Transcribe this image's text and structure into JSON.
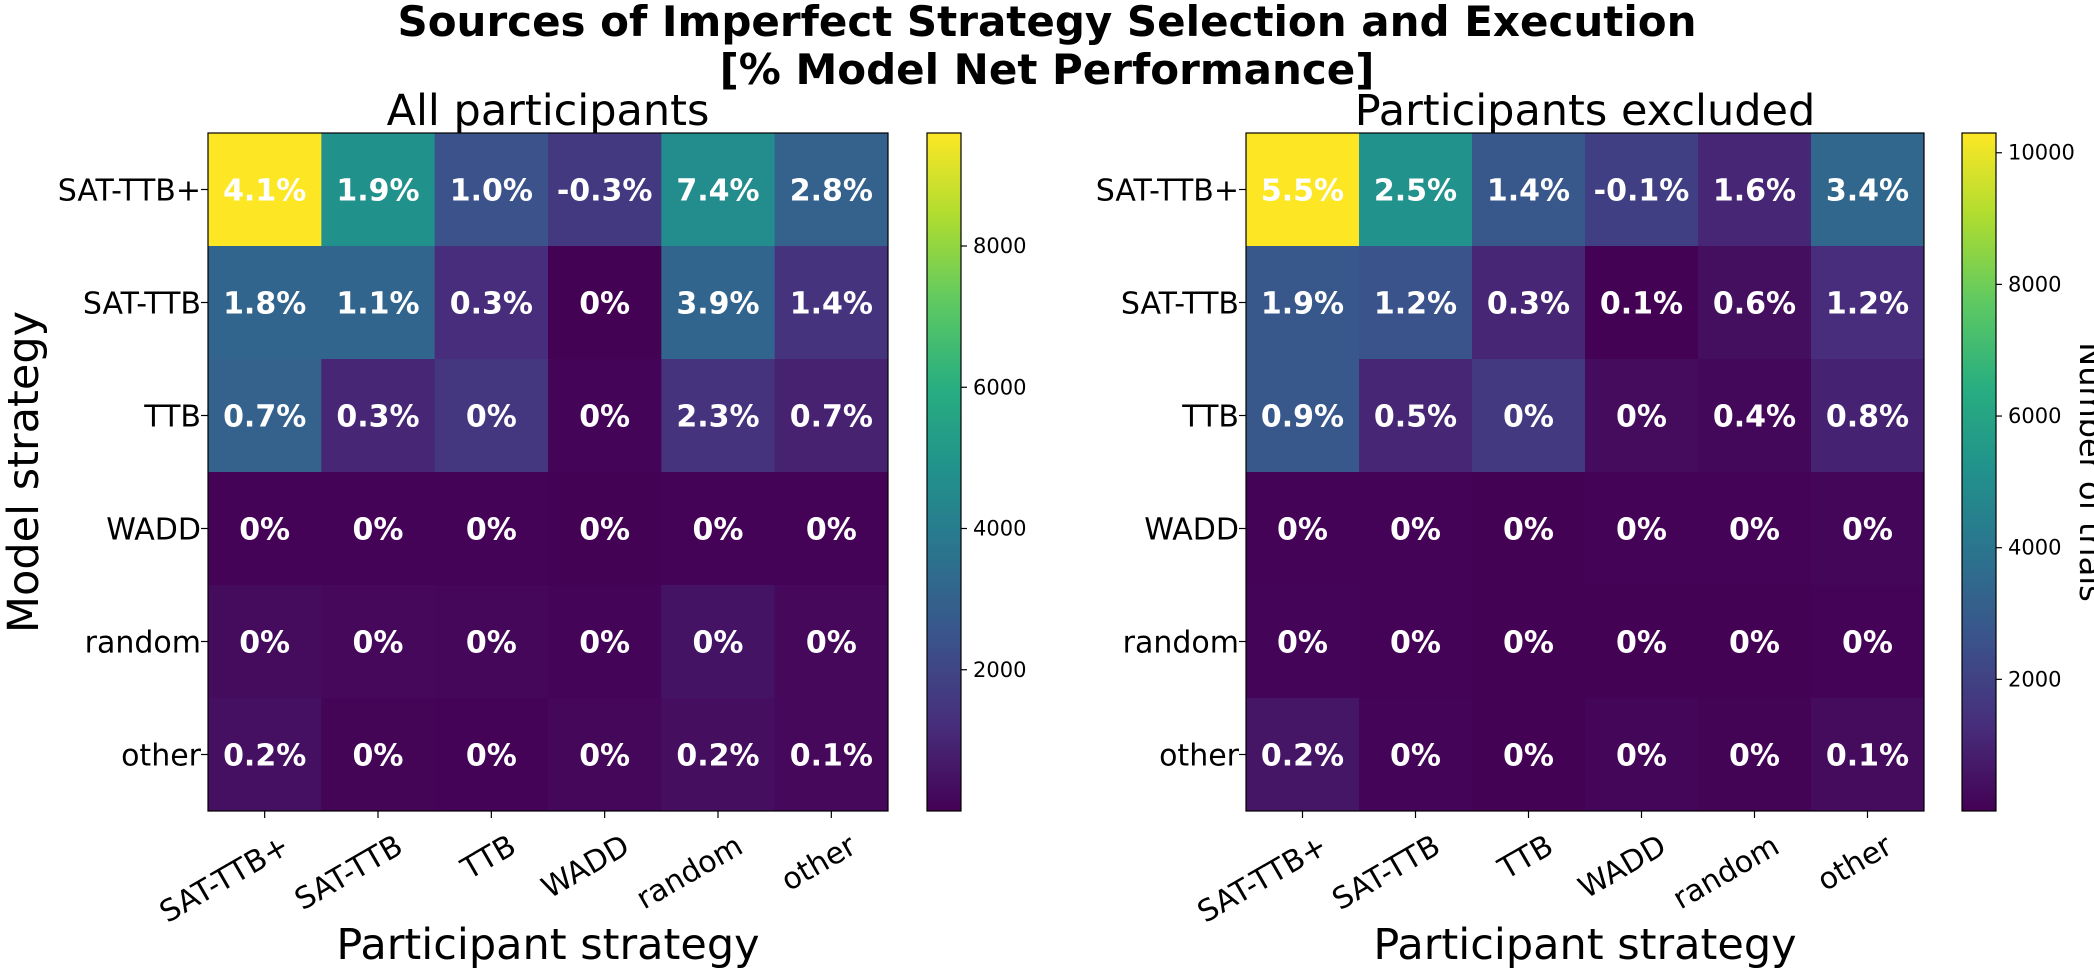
{
  "title_line1": "Sources of Imperfect Strategy Selection and Execution",
  "title_line2": "[% Model Net Performance]",
  "chart_data": [
    {
      "type": "heatmap",
      "title": "All participants",
      "xlabel": "Participant strategy",
      "ylabel": "Model strategy",
      "x_categories": [
        "SAT-TTB+",
        "SAT-TTB",
        "TTB",
        "WADD",
        "random",
        "other"
      ],
      "y_categories": [
        "SAT-TTB+",
        "SAT-TTB",
        "TTB",
        "WADD",
        "random",
        "other"
      ],
      "colormap": "viridis",
      "color_range": [
        0,
        9600
      ],
      "counts": [
        [
          9600,
          4800,
          2400,
          1600,
          4600,
          3000
        ],
        [
          3100,
          3100,
          1200,
          30,
          3100,
          1400
        ],
        [
          3000,
          1000,
          1500,
          80,
          1400,
          900
        ],
        [
          60,
          60,
          50,
          30,
          60,
          60
        ],
        [
          300,
          200,
          150,
          80,
          500,
          200
        ],
        [
          400,
          100,
          50,
          150,
          350,
          200
        ]
      ],
      "labels": [
        [
          "4.1%",
          "1.9%",
          "1.0%",
          "-0.3%",
          "7.4%",
          "2.8%"
        ],
        [
          "1.8%",
          "1.1%",
          "0.3%",
          "0%",
          "3.9%",
          "1.4%"
        ],
        [
          "0.7%",
          "0.3%",
          "0%",
          "0%",
          "2.3%",
          "0.7%"
        ],
        [
          "0%",
          "0%",
          "0%",
          "0%",
          "0%",
          "0%"
        ],
        [
          "0%",
          "0%",
          "0%",
          "0%",
          "0%",
          "0%"
        ],
        [
          "0.2%",
          "0%",
          "0%",
          "0%",
          "0.2%",
          "0.1%"
        ]
      ],
      "colorbar": {
        "ticks": [
          2000,
          4000,
          6000,
          8000
        ],
        "label": ""
      }
    },
    {
      "type": "heatmap",
      "title": "Participants excluded",
      "xlabel": "Participant strategy",
      "ylabel": "",
      "x_categories": [
        "SAT-TTB+",
        "SAT-TTB",
        "TTB",
        "WADD",
        "random",
        "other"
      ],
      "y_categories": [
        "SAT-TTB+",
        "SAT-TTB",
        "TTB",
        "WADD",
        "random",
        "other"
      ],
      "colormap": "viridis",
      "color_range": [
        0,
        10300
      ],
      "counts": [
        [
          10300,
          5200,
          2800,
          1900,
          1100,
          3400
        ],
        [
          2800,
          2600,
          1100,
          30,
          400,
          1300
        ],
        [
          2800,
          1100,
          1700,
          300,
          200,
          1000
        ],
        [
          60,
          50,
          40,
          60,
          60,
          150
        ],
        [
          100,
          60,
          40,
          40,
          40,
          60
        ],
        [
          600,
          100,
          40,
          150,
          80,
          300
        ]
      ],
      "labels": [
        [
          "5.5%",
          "2.5%",
          "1.4%",
          "-0.1%",
          "1.6%",
          "3.4%"
        ],
        [
          "1.9%",
          "1.2%",
          "0.3%",
          "0.1%",
          "0.6%",
          "1.2%"
        ],
        [
          "0.9%",
          "0.5%",
          "0%",
          "0%",
          "0.4%",
          "0.8%"
        ],
        [
          "0%",
          "0%",
          "0%",
          "0%",
          "0%",
          "0%"
        ],
        [
          "0%",
          "0%",
          "0%",
          "0%",
          "0%",
          "0%"
        ],
        [
          "0.2%",
          "0%",
          "0%",
          "0%",
          "0%",
          "0.1%"
        ]
      ],
      "colorbar": {
        "ticks": [
          2000,
          4000,
          6000,
          8000,
          10000
        ],
        "label": "Number of trials"
      }
    }
  ]
}
